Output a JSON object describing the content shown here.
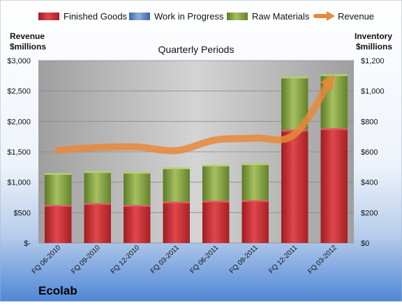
{
  "company": "Ecolab",
  "colors": {
    "finished_goods": "#c0282d",
    "work_in_progress": "#4f81bd",
    "raw_materials": "#7a9a3a",
    "revenue": "#e8883a"
  },
  "chart_data": {
    "type": "bar",
    "stacked": true,
    "title": "Quarterly Periods",
    "left_axis_title": [
      "Revenue",
      "$millions"
    ],
    "right_axis_title": [
      "Inventory",
      "$millions"
    ],
    "categories": [
      "FQ 06-2010",
      "FQ 09-2010",
      "FQ 12-2010",
      "FQ 03-2011",
      "FQ 06-2011",
      "FQ 09-2011",
      "FQ 12-2011",
      "FQ 03-2012"
    ],
    "left_ticks": [
      "$-",
      "$500",
      "$1,000",
      "$1,500",
      "$2,000",
      "$2,500",
      "$3,000"
    ],
    "right_ticks": [
      "$0",
      "$200",
      "$400",
      "$600",
      "$800",
      "$1,000",
      "$1,200"
    ],
    "left_range": [
      0,
      3000
    ],
    "right_range": [
      0,
      1200
    ],
    "legend_position": "top",
    "grid": true,
    "inventory_series": [
      {
        "name": "Finished Goods",
        "color_key": "finished_goods",
        "values": [
          250,
          262,
          250,
          272,
          278,
          282,
          745,
          755
        ]
      },
      {
        "name": "Work in Progress",
        "color_key": "work_in_progress",
        "values": [
          0,
          0,
          0,
          0,
          0,
          0,
          0,
          0
        ]
      },
      {
        "name": "Raw Materials",
        "color_key": "raw_materials",
        "values": [
          210,
          210,
          218,
          225,
          237,
          242,
          350,
          355
        ]
      }
    ],
    "revenue_series": {
      "name": "Revenue",
      "color_key": "revenue",
      "values": [
        1525,
        1570,
        1580,
        1520,
        1695,
        1725,
        1790,
        2770
      ]
    }
  }
}
